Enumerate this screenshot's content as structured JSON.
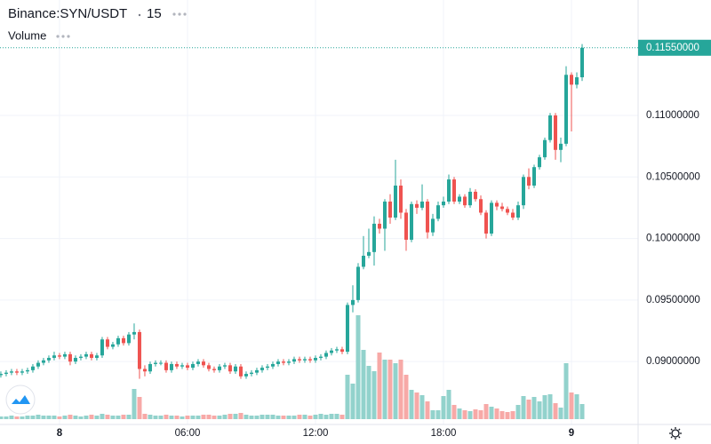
{
  "chart_data": {
    "type": "candlestick",
    "title": "Binance:SYN/USDT",
    "interval": "15",
    "volume_label": "Volume",
    "up_color": "#26a69a",
    "down_color": "#ef5350",
    "volume_up_color": "#92d2cc",
    "volume_down_color": "#f7a9a7",
    "grid": true,
    "xlim": [
      -2.79,
      27.125
    ],
    "xticks": [
      {
        "value": 0,
        "label": "8"
      },
      {
        "value": 6,
        "label": "06:00"
      },
      {
        "value": 12,
        "label": "12:00"
      },
      {
        "value": 18,
        "label": "18:00"
      },
      {
        "value": 24,
        "label": "9"
      }
    ],
    "ylim": [
      0.08489,
      0.11938
    ],
    "yticks": [
      {
        "value": 0.09,
        "label": "0.09000000"
      },
      {
        "value": 0.095,
        "label": "0.09500000"
      },
      {
        "value": 0.1,
        "label": "0.10000000"
      },
      {
        "value": 0.105,
        "label": "0.10500000"
      },
      {
        "value": 0.11,
        "label": "0.11000000"
      }
    ],
    "last_price": {
      "value": 0.1155,
      "label": "0.11550000"
    },
    "x": [
      -2.75,
      -2.5,
      -2.25,
      -2,
      -1.75,
      -1.5,
      -1.25,
      -1,
      -0.75,
      -0.5,
      -0.25,
      0,
      0.25,
      0.5,
      0.75,
      1,
      1.25,
      1.5,
      1.75,
      2,
      2.25,
      2.5,
      2.75,
      3,
      3.25,
      3.5,
      3.75,
      4,
      4.25,
      4.5,
      4.75,
      5,
      5.25,
      5.5,
      5.75,
      6,
      6.25,
      6.5,
      6.75,
      7,
      7.25,
      7.5,
      7.75,
      8,
      8.25,
      8.5,
      8.75,
      9,
      9.25,
      9.5,
      9.75,
      10,
      10.25,
      10.5,
      10.75,
      11,
      11.25,
      11.5,
      11.75,
      12,
      12.25,
      12.5,
      12.75,
      13,
      13.25,
      13.5,
      13.75,
      14,
      14.25,
      14.5,
      14.75,
      15,
      15.25,
      15.5,
      15.75,
      16,
      16.25,
      16.5,
      16.75,
      17,
      17.25,
      17.5,
      17.75,
      18,
      18.25,
      18.5,
      18.75,
      19,
      19.25,
      19.5,
      19.75,
      20,
      20.25,
      20.5,
      20.75,
      21,
      21.25,
      21.5,
      21.75,
      22,
      22.25,
      22.5,
      22.75,
      23,
      23.25,
      23.5,
      23.75,
      24,
      24.25,
      24.5
    ],
    "open": [
      0.0889,
      0.089,
      0.0891,
      0.0892,
      0.0891,
      0.0892,
      0.0893,
      0.0896,
      0.0899,
      0.0901,
      0.0903,
      0.0905,
      0.0904,
      0.0906,
      0.09,
      0.0903,
      0.0904,
      0.0906,
      0.0903,
      0.0905,
      0.0918,
      0.0912,
      0.0914,
      0.0919,
      0.0915,
      0.0922,
      0.0924,
      0.0894,
      0.0892,
      0.0898,
      0.0899,
      0.0899,
      0.0893,
      0.0898,
      0.0896,
      0.0897,
      0.0895,
      0.0898,
      0.09,
      0.0897,
      0.0894,
      0.0893,
      0.0896,
      0.0897,
      0.0892,
      0.0896,
      0.0888,
      0.089,
      0.0891,
      0.0893,
      0.0895,
      0.0896,
      0.0898,
      0.09,
      0.0899,
      0.09,
      0.0902,
      0.0901,
      0.0902,
      0.0901,
      0.0903,
      0.0904,
      0.0907,
      0.0909,
      0.091,
      0.0908,
      0.0946,
      0.095,
      0.0977,
      0.0986,
      0.0989,
      0.1012,
      0.1008,
      0.103,
      0.1017,
      0.1043,
      0.1021,
      0.0999,
      0.1028,
      0.1025,
      0.103,
      0.1005,
      0.1016,
      0.1027,
      0.103,
      0.1048,
      0.103,
      0.1034,
      0.1027,
      0.1038,
      0.1032,
      0.1021,
      0.1004,
      0.1029,
      0.1026,
      0.1024,
      0.1021,
      0.1017,
      0.1027,
      0.105,
      0.1043,
      0.1058,
      0.1066,
      0.108,
      0.11,
      0.1072,
      0.1077,
      0.1133,
      0.1125,
      0.1131
    ],
    "high": [
      0.0892,
      0.0893,
      0.0894,
      0.0894,
      0.0894,
      0.0895,
      0.0898,
      0.0901,
      0.0903,
      0.0905,
      0.0908,
      0.0907,
      0.0908,
      0.0908,
      0.0905,
      0.0906,
      0.0908,
      0.0908,
      0.0907,
      0.092,
      0.092,
      0.0916,
      0.0921,
      0.0921,
      0.0924,
      0.0931,
      0.0926,
      0.0897,
      0.09,
      0.0901,
      0.0901,
      0.0901,
      0.09,
      0.09,
      0.0899,
      0.0899,
      0.09,
      0.0902,
      0.0902,
      0.0899,
      0.0896,
      0.0898,
      0.0899,
      0.0899,
      0.0898,
      0.0898,
      0.0892,
      0.0893,
      0.0895,
      0.0897,
      0.0898,
      0.09,
      0.0902,
      0.0902,
      0.0902,
      0.0904,
      0.0904,
      0.0904,
      0.0904,
      0.0905,
      0.0906,
      0.0909,
      0.0911,
      0.0912,
      0.0912,
      0.0948,
      0.0962,
      0.098,
      0.1002,
      0.1008,
      0.1018,
      0.1016,
      0.1032,
      0.1036,
      0.1064,
      0.1048,
      0.1024,
      0.103,
      0.1031,
      0.1044,
      0.1032,
      0.102,
      0.103,
      0.1034,
      0.1052,
      0.105,
      0.1036,
      0.1036,
      0.1041,
      0.104,
      0.1035,
      0.1023,
      0.1031,
      0.1031,
      0.1029,
      0.1026,
      0.1024,
      0.103,
      0.1052,
      0.1057,
      0.106,
      0.1068,
      0.1082,
      0.1102,
      0.1102,
      0.1082,
      0.114,
      0.1135,
      0.1135,
      0.1158
    ],
    "low": [
      0.0887,
      0.0888,
      0.0889,
      0.0889,
      0.0889,
      0.089,
      0.0891,
      0.0894,
      0.0897,
      0.0899,
      0.0901,
      0.0902,
      0.0902,
      0.0897,
      0.0898,
      0.0901,
      0.0902,
      0.0901,
      0.0901,
      0.0903,
      0.091,
      0.091,
      0.0912,
      0.0913,
      0.0913,
      0.0918,
      0.0886,
      0.0888,
      0.089,
      0.0896,
      0.0897,
      0.0891,
      0.0891,
      0.0894,
      0.0894,
      0.0893,
      0.0893,
      0.0896,
      0.0895,
      0.0892,
      0.0891,
      0.0891,
      0.0894,
      0.089,
      0.089,
      0.0886,
      0.0886,
      0.0888,
      0.0889,
      0.0891,
      0.0893,
      0.0894,
      0.0896,
      0.0897,
      0.0897,
      0.0898,
      0.0899,
      0.0899,
      0.0899,
      0.0899,
      0.0901,
      0.0902,
      0.0905,
      0.0907,
      0.0906,
      0.0906,
      0.094,
      0.0948,
      0.0975,
      0.0984,
      0.0978,
      0.1004,
      0.099,
      0.1012,
      0.1015,
      0.1016,
      0.099,
      0.0997,
      0.102,
      0.1023,
      0.1,
      0.1002,
      0.1014,
      0.1025,
      0.1028,
      0.1028,
      0.1028,
      0.1025,
      0.1025,
      0.103,
      0.1019,
      0.1,
      0.1002,
      0.1023,
      0.1022,
      0.1019,
      0.1015,
      0.1015,
      0.1024,
      0.104,
      0.1041,
      0.1056,
      0.1064,
      0.1078,
      0.1064,
      0.1062,
      0.1075,
      0.1087,
      0.1122,
      0.1128
    ],
    "close": [
      0.089,
      0.0891,
      0.0892,
      0.0891,
      0.0892,
      0.0893,
      0.0896,
      0.0899,
      0.0901,
      0.0903,
      0.0905,
      0.0904,
      0.0906,
      0.09,
      0.0903,
      0.0904,
      0.0906,
      0.0903,
      0.0905,
      0.0918,
      0.0912,
      0.0914,
      0.0919,
      0.0915,
      0.0922,
      0.0924,
      0.0894,
      0.0892,
      0.0898,
      0.0899,
      0.0899,
      0.0893,
      0.0898,
      0.0896,
      0.0897,
      0.0895,
      0.0898,
      0.09,
      0.0897,
      0.0894,
      0.0893,
      0.0896,
      0.0897,
      0.0892,
      0.0896,
      0.0888,
      0.089,
      0.0891,
      0.0893,
      0.0895,
      0.0896,
      0.0898,
      0.09,
      0.0899,
      0.09,
      0.0902,
      0.0901,
      0.0902,
      0.0901,
      0.0903,
      0.0904,
      0.0907,
      0.0909,
      0.091,
      0.0908,
      0.0946,
      0.095,
      0.0977,
      0.0986,
      0.0989,
      0.1012,
      0.1008,
      0.103,
      0.1017,
      0.1043,
      0.1021,
      0.0999,
      0.1028,
      0.1025,
      0.103,
      0.1005,
      0.1016,
      0.1027,
      0.103,
      0.1048,
      0.103,
      0.1034,
      0.1027,
      0.1038,
      0.1032,
      0.1021,
      0.1004,
      0.1029,
      0.1026,
      0.1024,
      0.1021,
      0.1017,
      0.1027,
      0.105,
      0.1043,
      0.1058,
      0.1066,
      0.108,
      0.11,
      0.1072,
      0.1077,
      0.1133,
      0.1125,
      0.1131,
      0.1155
    ],
    "volume": [
      3,
      3,
      4,
      3,
      3,
      4,
      4,
      5,
      4,
      4,
      4,
      3,
      4,
      5,
      4,
      3,
      4,
      5,
      4,
      6,
      5,
      4,
      4,
      5,
      5,
      34,
      25,
      6,
      5,
      4,
      4,
      5,
      4,
      4,
      3,
      4,
      4,
      4,
      5,
      5,
      4,
      4,
      5,
      6,
      6,
      7,
      5,
      4,
      4,
      5,
      5,
      5,
      4,
      4,
      4,
      4,
      5,
      5,
      4,
      5,
      6,
      5,
      6,
      6,
      5,
      50,
      40,
      117,
      78,
      60,
      54,
      75,
      67,
      67,
      63,
      67,
      50,
      33,
      30,
      27,
      20,
      10,
      10,
      26,
      33,
      16,
      12,
      10,
      9,
      11,
      10,
      17,
      14,
      12,
      9,
      8,
      9,
      16,
      26,
      22,
      25,
      20,
      27,
      28,
      18,
      13,
      63,
      30,
      28,
      17
    ]
  }
}
